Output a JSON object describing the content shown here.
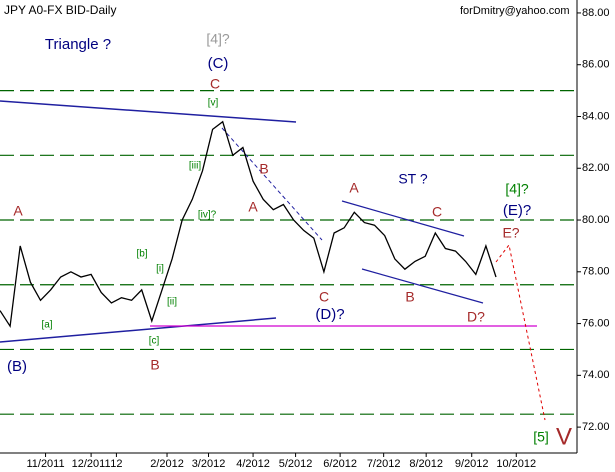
{
  "chart_data": {
    "type": "line",
    "title": "JPY A0-FX BID-Daily",
    "subtitle": "forDmitry@yahoo.com",
    "x": [
      0,
      1,
      2,
      3,
      4,
      5,
      6,
      7,
      8,
      9,
      10,
      11,
      12,
      13,
      14,
      15,
      16,
      17,
      18,
      19,
      20,
      21,
      22,
      23,
      24,
      25,
      26,
      27,
      28,
      29,
      30,
      31,
      32,
      33,
      34,
      35,
      36,
      37,
      38,
      39,
      40,
      41,
      42,
      43,
      44,
      45,
      46,
      47,
      48,
      49
    ],
    "series": [
      {
        "name": "JPY A0-FX BID",
        "color": "#000000",
        "values": [
          76.5,
          75.9,
          79.0,
          77.6,
          76.9,
          77.3,
          77.8,
          78.0,
          77.8,
          77.9,
          77.2,
          76.8,
          77.0,
          76.9,
          77.3,
          76.1,
          77.3,
          78.5,
          80.0,
          80.8,
          81.9,
          83.5,
          83.8,
          82.5,
          82.8,
          81.5,
          80.8,
          80.4,
          80.6,
          80.0,
          79.6,
          79.3,
          78.0,
          79.5,
          79.7,
          80.3,
          79.9,
          79.8,
          79.4,
          78.5,
          78.1,
          78.4,
          78.6,
          79.5,
          78.9,
          78.8,
          78.4,
          77.9,
          79.0,
          77.8
        ]
      }
    ],
    "xlim": [
      0,
      57
    ],
    "xticks": [
      {
        "value": 4.5,
        "label": "11/2011"
      },
      {
        "value": 9,
        "label": "12/2011"
      },
      {
        "value": 11.5,
        "label": "12"
      },
      {
        "value": 16.5,
        "label": "2/2012"
      },
      {
        "value": 20.6,
        "label": "3/2012"
      },
      {
        "value": 25,
        "label": "4/2012"
      },
      {
        "value": 29.2,
        "label": "5/2012"
      },
      {
        "value": 33.6,
        "label": "6/2012"
      },
      {
        "value": 37.9,
        "label": "7/2012"
      },
      {
        "value": 42.1,
        "label": "8/2012"
      },
      {
        "value": 46.6,
        "label": "9/2012"
      },
      {
        "value": 51,
        "label": "10/2012"
      }
    ],
    "ylim": [
      71,
      88.5
    ],
    "yticks": [
      {
        "value": 72,
        "label": "72.00"
      },
      {
        "value": 74,
        "label": "74.00"
      },
      {
        "value": 76,
        "label": "76.00"
      },
      {
        "value": 78,
        "label": "78.00"
      },
      {
        "value": 80,
        "label": "80.00"
      },
      {
        "value": 82,
        "label": "82.00"
      },
      {
        "value": 84,
        "label": "84.00"
      },
      {
        "value": 86,
        "label": "86.00"
      },
      {
        "value": 88,
        "label": "88.00"
      }
    ],
    "levels": [
      85,
      82.5,
      80,
      77.5,
      75,
      72.5
    ],
    "level_color": "#006400",
    "annotations": [
      {
        "text": "Triangle ?",
        "color": "#000080"
      },
      {
        "text": "[4]?",
        "color": "#999999"
      },
      {
        "text": "(C)",
        "color": "#000080"
      },
      {
        "text": "C",
        "color": "#a52a2a"
      },
      {
        "text": "[v]",
        "color": "#008000"
      },
      {
        "text": "B",
        "color": "#a52a2a"
      },
      {
        "text": "[iii]",
        "color": "#008000"
      },
      {
        "text": "[iv]?",
        "color": "#008000"
      },
      {
        "text": "A",
        "color": "#a52a2a"
      },
      {
        "text": "A",
        "color": "#a52a2a"
      },
      {
        "text": "[a]",
        "color": "#008000"
      },
      {
        "text": "[b]",
        "color": "#008000"
      },
      {
        "text": "[i]",
        "color": "#008000"
      },
      {
        "text": "[ii]",
        "color": "#008000"
      },
      {
        "text": "[c]",
        "color": "#008000"
      },
      {
        "text": "B",
        "color": "#a52a2a"
      },
      {
        "text": "(B)",
        "color": "#000080"
      },
      {
        "text": "ST ?",
        "color": "#000080"
      },
      {
        "text": "A",
        "color": "#a52a2a"
      },
      {
        "text": "C",
        "color": "#a52a2a"
      },
      {
        "text": "C",
        "color": "#a52a2a"
      },
      {
        "text": "(D)?",
        "color": "#000080"
      },
      {
        "text": "B",
        "color": "#a52a2a"
      },
      {
        "text": "D?",
        "color": "#a52a2a"
      },
      {
        "text": "[4]?",
        "color": "#008000"
      },
      {
        "text": "(E)?",
        "color": "#000080"
      },
      {
        "text": "E?",
        "color": "#a52a2a"
      },
      {
        "text": "[5]",
        "color": "#008000"
      },
      {
        "text": "V",
        "color": "#a52a2a"
      }
    ]
  }
}
